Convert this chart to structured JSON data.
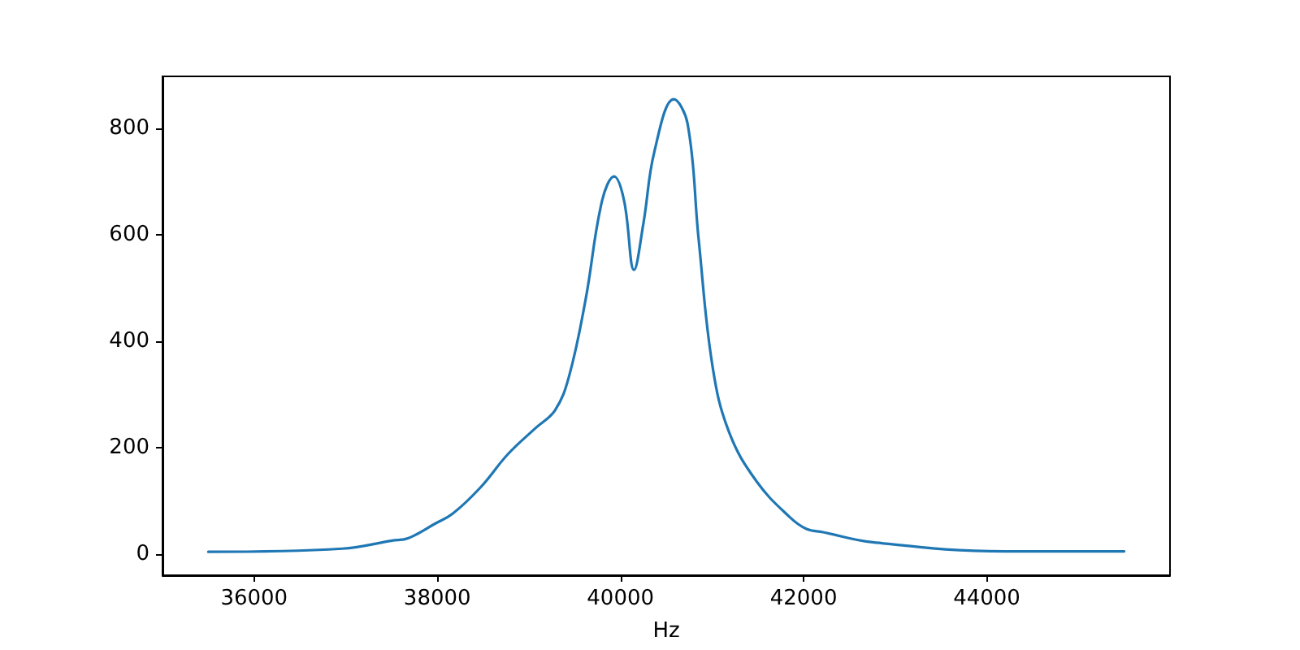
{
  "chart_data": {
    "type": "line",
    "xlabel": "Hz",
    "x": [
      35500,
      36963,
      37506,
      37687,
      37976,
      38170,
      38471,
      38773,
      39075,
      39285,
      39437,
      39618,
      39799,
      39931,
      40040,
      40148,
      40251,
      40371,
      40583,
      40733,
      40854,
      41005,
      41186,
      41488,
      41850,
      42031,
      42212,
      42755,
      44203,
      45500
    ],
    "series": [
      {
        "color": "#1f77b4",
        "values": [
          4,
          10,
          25,
          30,
          57,
          76,
          125,
          188,
          237,
          270,
          333,
          477,
          664,
          710,
          664,
          534,
          622,
          757,
          855,
          809,
          591,
          353,
          229,
          136,
          69,
          47,
          41,
          22,
          5,
          5
        ]
      }
    ],
    "xlim": [
      35000,
      46000
    ],
    "xticks": [
      36000,
      38000,
      40000,
      42000,
      44000
    ],
    "ylim": [
      -40,
      898
    ],
    "yticks": [
      0,
      200,
      400,
      600,
      800
    ],
    "grid": false,
    "marker": "none",
    "line_style": "solid"
  }
}
